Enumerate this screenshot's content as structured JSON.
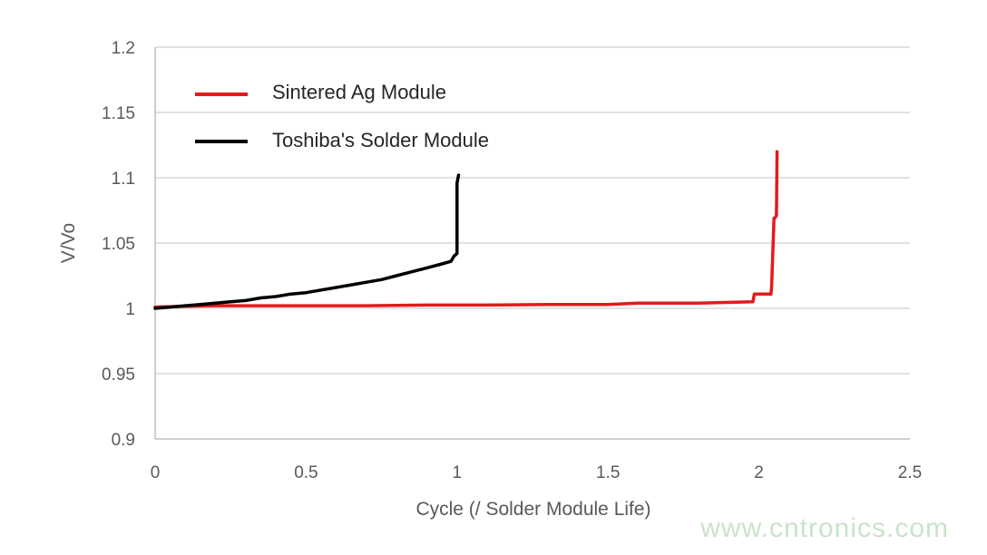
{
  "chart_data": {
    "type": "line",
    "title": "",
    "xlabel": "Cycle (/  Solder Module Life)",
    "ylabel": "V/Vo",
    "xlim": [
      0,
      2.5
    ],
    "ylim": [
      0.9,
      1.2
    ],
    "x_ticks": [
      0,
      0.5,
      1,
      1.5,
      2,
      2.5
    ],
    "x_tick_labels": [
      "0",
      "0.5",
      "1",
      "1.5",
      "2",
      "2.5"
    ],
    "y_ticks": [
      0.9,
      0.95,
      1,
      1.05,
      1.1,
      1.15,
      1.2
    ],
    "y_tick_labels": [
      "0.9",
      "0.95",
      "1",
      "1.05",
      "1.1",
      "1.15",
      "1.2"
    ],
    "grid": true,
    "legend_position": "top-left",
    "series": [
      {
        "name": "Sintered Ag Module",
        "color": "#e31a1c",
        "x": [
          0,
          0.1,
          0.2,
          0.3,
          0.5,
          0.7,
          0.9,
          1.1,
          1.3,
          1.5,
          1.6,
          1.8,
          1.98,
          1.985,
          2.04,
          2.042,
          2.05,
          2.052,
          2.058,
          2.06
        ],
        "y": [
          1.001,
          1.0015,
          1.002,
          1.002,
          1.002,
          1.002,
          1.0025,
          1.0025,
          1.003,
          1.003,
          1.004,
          1.004,
          1.005,
          1.011,
          1.011,
          1.017,
          1.069,
          1.069,
          1.071,
          1.12
        ]
      },
      {
        "name": "Toshiba's Solder Module",
        "color": "#000000",
        "x": [
          0,
          0.05,
          0.1,
          0.15,
          0.2,
          0.25,
          0.3,
          0.35,
          0.4,
          0.45,
          0.5,
          0.55,
          0.6,
          0.65,
          0.7,
          0.75,
          0.8,
          0.85,
          0.9,
          0.95,
          0.98,
          0.99,
          1.0,
          1.0,
          1.005
        ],
        "y": [
          1.0,
          1.001,
          1.002,
          1.003,
          1.004,
          1.005,
          1.006,
          1.008,
          1.009,
          1.011,
          1.012,
          1.014,
          1.016,
          1.018,
          1.02,
          1.022,
          1.025,
          1.028,
          1.031,
          1.034,
          1.036,
          1.04,
          1.042,
          1.096,
          1.102
        ]
      }
    ]
  },
  "watermark": "www.cntronics.com"
}
